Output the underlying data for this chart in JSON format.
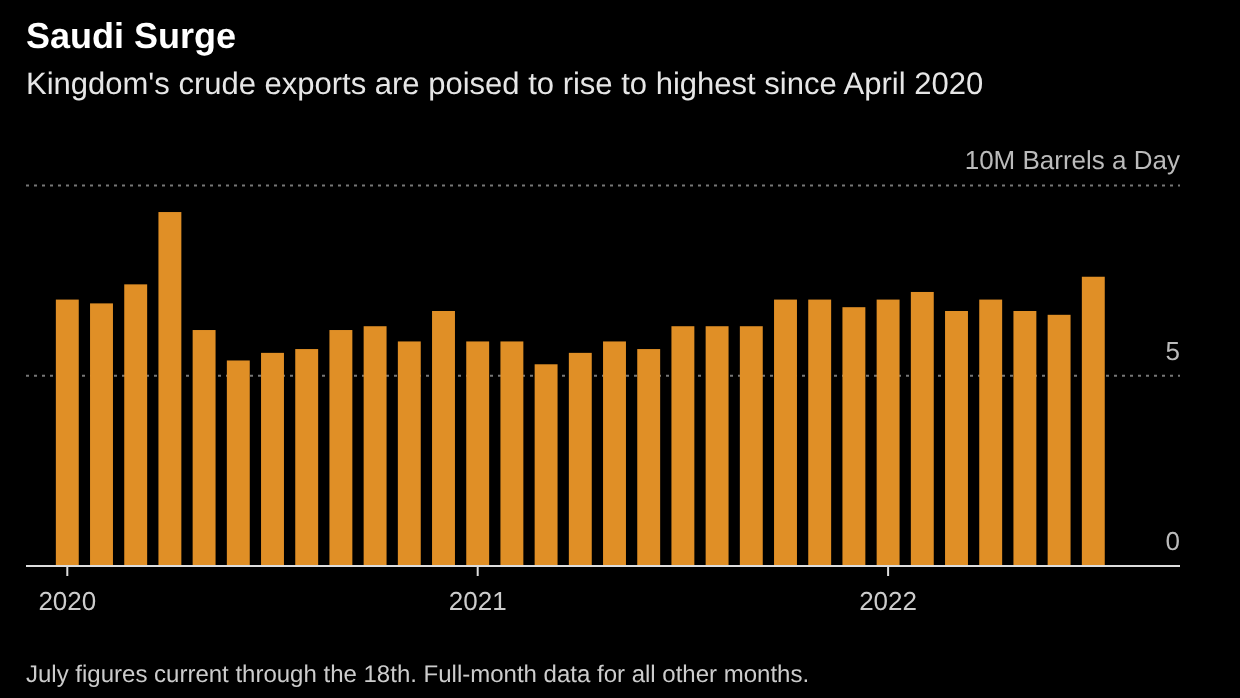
{
  "chart_data": {
    "type": "bar",
    "title": "Saudi Surge",
    "subtitle": "Kingdom's crude exports are poised to rise to highest since April 2020",
    "categories": [
      "2020",
      null,
      null,
      null,
      null,
      null,
      null,
      null,
      null,
      null,
      null,
      null,
      "2021",
      null,
      null,
      null,
      null,
      null,
      null,
      null,
      null,
      null,
      null,
      null,
      "2022",
      null,
      null,
      null,
      null,
      null,
      null
    ],
    "values": [
      7.0,
      6.9,
      7.4,
      9.3,
      6.2,
      5.4,
      5.6,
      5.7,
      6.2,
      6.3,
      5.9,
      6.7,
      5.9,
      5.9,
      5.3,
      5.6,
      5.9,
      5.7,
      6.3,
      6.3,
      6.3,
      7.0,
      7.0,
      6.8,
      7.0,
      7.2,
      6.7,
      7.0,
      6.7,
      6.6,
      7.6
    ],
    "color": "#e08f26",
    "ylim": [
      0,
      10
    ],
    "yticks": [
      0,
      5,
      {
        "value": 10,
        "label": "10M Barrels a Day"
      }
    ],
    "grid": "y",
    "annotations": [
      "July figures current through the 18th. Full-month data for all other months."
    ]
  }
}
